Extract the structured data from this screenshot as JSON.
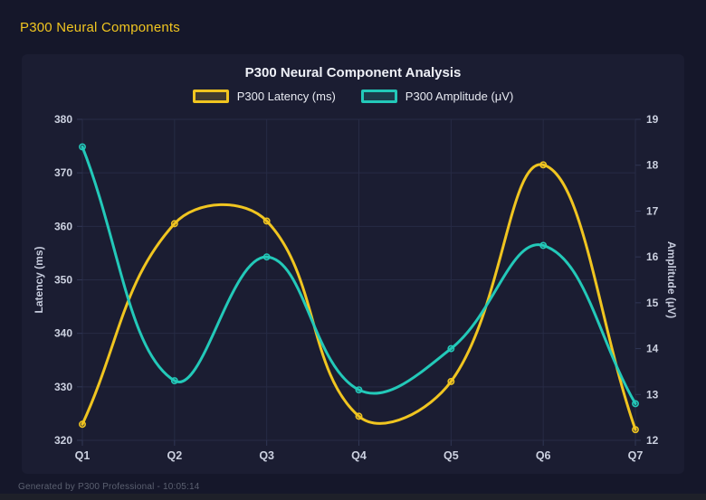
{
  "page": {
    "title": "P300 Neural Components",
    "footer": "Generated by P300 Professional - 10:05:14"
  },
  "colors": {
    "page_bg": "#15172a",
    "panel_bg": "#1b1d32",
    "grid": "#272b45",
    "tick_mark": "#303654",
    "tick_text": "#ccd1e0",
    "axis_title_text": "#c6cbdc",
    "title_text": "#eef0f7",
    "legend_text": "#e8eaf2",
    "footer_text": "#5b6070"
  },
  "chart_data": {
    "type": "line",
    "title": "P300 Neural Component Analysis",
    "categories": [
      "Q1",
      "Q2",
      "Q3",
      "Q4",
      "Q5",
      "Q6",
      "Q7"
    ],
    "series": [
      {
        "name": "P300 Latency (ms)",
        "yAxis": "left",
        "color": "#f0c520",
        "values": [
          323,
          360.5,
          361,
          324.5,
          331,
          371.5,
          322
        ]
      },
      {
        "name": "P300 Amplitude (μV)",
        "yAxis": "right",
        "color": "#23c9b9",
        "values": [
          18.4,
          13.3,
          16,
          13.1,
          14,
          16.25,
          12.8
        ]
      }
    ],
    "left_axis": {
      "label": "Latency (ms)",
      "min": 320,
      "max": 380,
      "ticks": [
        320,
        330,
        340,
        350,
        360,
        370,
        380
      ]
    },
    "right_axis": {
      "label": "Amplitude (μV)",
      "min": 12,
      "max": 19,
      "ticks": [
        12,
        13,
        14,
        15,
        16,
        17,
        18,
        19
      ]
    },
    "legend_position": "top",
    "grid": true,
    "curve_tension": 0.4
  }
}
